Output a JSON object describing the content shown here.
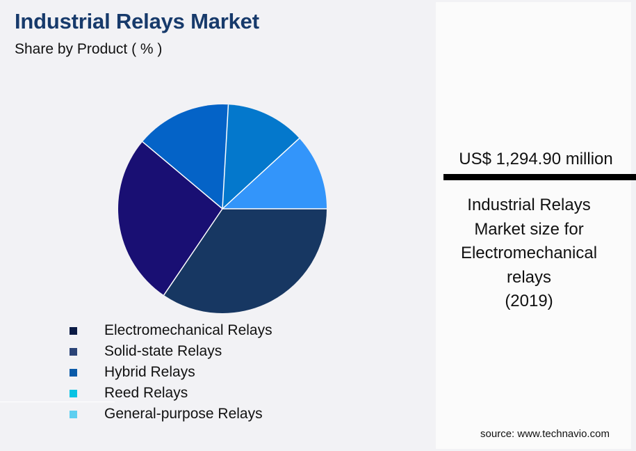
{
  "header": {
    "title": "Industrial Relays Market",
    "subtitle": "Share by Product ( % )"
  },
  "side_panel": {
    "value": "US$ 1,294.90 million",
    "caption": "Industrial Relays Market size for Electromechanical relays (2019)",
    "caption_lines": [
      "Industrial Relays",
      "Market size for",
      "Electromechanical",
      "relays",
      "(2019)"
    ],
    "source": "source: www.technavio.com"
  },
  "legend": {
    "items": [
      {
        "label": "Electromechanical Relays",
        "color": "#0b1b45"
      },
      {
        "label": "Solid-state Relays",
        "color": "#2b4477"
      },
      {
        "label": "Hybrid Relays",
        "color": "#0a5aa8"
      },
      {
        "label": "Reed Relays",
        "color": "#08c3e3"
      },
      {
        "label": "General-purpose Relays",
        "color": "#5ecff0"
      }
    ]
  },
  "colors": {
    "title": "#173a6b",
    "background": "#f2f2f5",
    "panel": "#fbfbfb"
  },
  "chart_data": {
    "type": "pie",
    "title": "Industrial Relays Market",
    "subtitle": "Share by Product ( % )",
    "categories": [
      "Electromechanical Relays",
      "Solid-state Relays",
      "Hybrid Relays",
      "Reed Relays",
      "General-purpose Relays"
    ],
    "values": [
      34.5,
      26.6,
      14.8,
      12.3,
      11.8
    ],
    "unit": "%",
    "slice_colors": [
      "#173762",
      "#190f73",
      "#0463c7",
      "#0478cc",
      "#3395fa"
    ],
    "start_angle_deg": 0,
    "direction": "clockwise",
    "data_labels": false,
    "legend_position": "bottom-left"
  }
}
